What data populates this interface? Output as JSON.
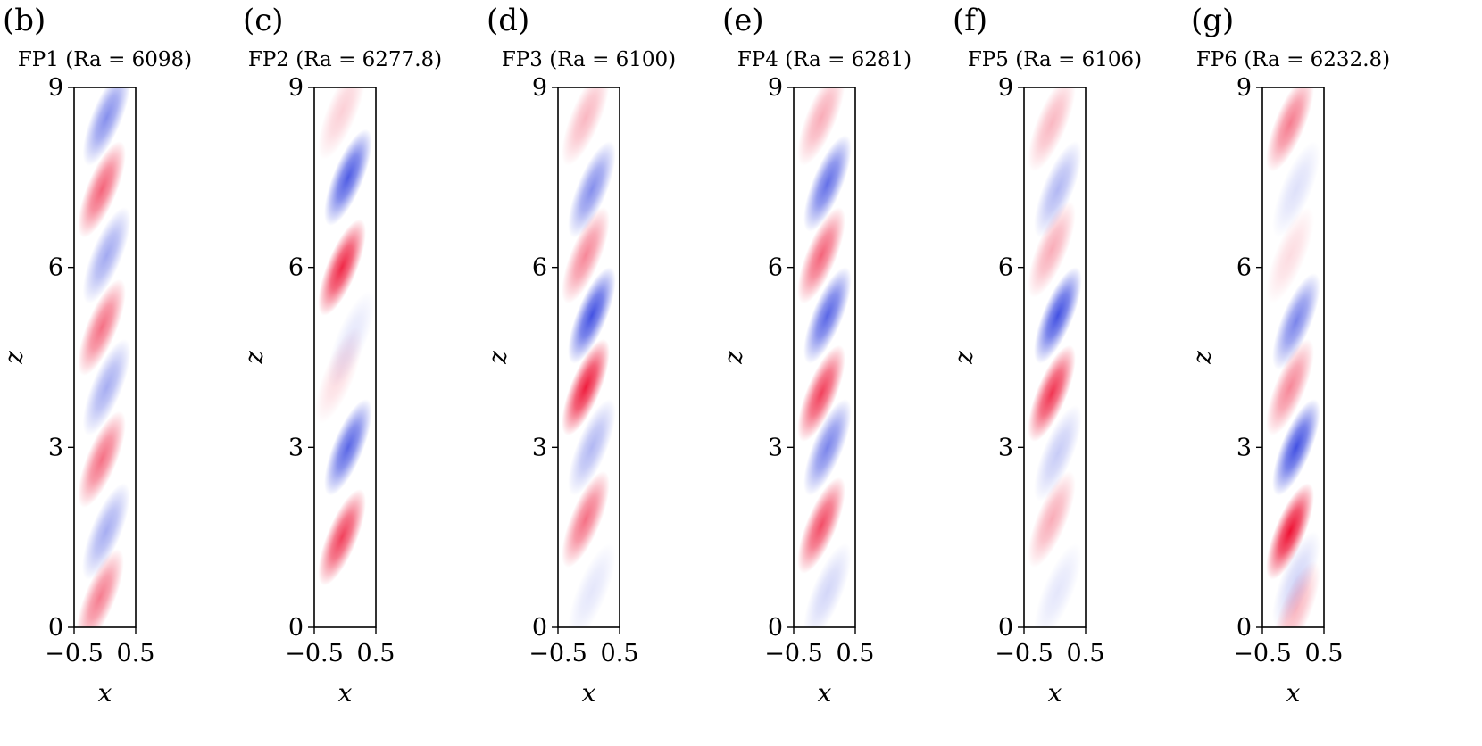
{
  "chart_data": [
    {
      "type": "heatmap",
      "label": "(b)",
      "title": "FP1 (Ra = 6098)",
      "xlabel": "x",
      "ylabel": "z",
      "xlim": [
        -0.5,
        0.5
      ],
      "ylim": [
        0,
        9
      ],
      "xticks": [
        "−0.5",
        "0.5"
      ],
      "yticks": [
        "0",
        "3",
        "6",
        "9"
      ],
      "colormap": [
        "#2233dd",
        "#ffffff",
        "#ee1133"
      ],
      "blobs": [
        {
          "z": 0.5,
          "x": -0.08,
          "sign": 1,
          "amp": 0.55
        },
        {
          "z": 1.6,
          "x": 0.02,
          "sign": -1,
          "amp": 0.4
        },
        {
          "z": 2.8,
          "x": -0.05,
          "sign": 1,
          "amp": 0.6
        },
        {
          "z": 4.0,
          "x": 0.03,
          "sign": -1,
          "amp": 0.4
        },
        {
          "z": 5.0,
          "x": -0.05,
          "sign": 1,
          "amp": 0.6
        },
        {
          "z": 6.2,
          "x": 0.03,
          "sign": -1,
          "amp": 0.42
        },
        {
          "z": 7.3,
          "x": -0.05,
          "sign": 1,
          "amp": 0.65
        },
        {
          "z": 8.5,
          "x": 0.03,
          "sign": -1,
          "amp": 0.55
        }
      ]
    },
    {
      "type": "heatmap",
      "label": "(c)",
      "title": "FP2 (Ra = 6277.8)",
      "xlabel": "x",
      "ylabel": "z",
      "xlim": [
        -0.5,
        0.5
      ],
      "ylim": [
        0,
        9
      ],
      "xticks": [
        "−0.5",
        "0.5"
      ],
      "yticks": [
        "0",
        "3",
        "6",
        "9"
      ],
      "colormap": [
        "#2233dd",
        "#ffffff",
        "#ee1133"
      ],
      "blobs": [
        {
          "z": 1.5,
          "x": -0.05,
          "sign": 1,
          "amp": 0.8
        },
        {
          "z": 3.0,
          "x": 0.05,
          "sign": -1,
          "amp": 0.75
        },
        {
          "z": 4.2,
          "x": -0.1,
          "sign": 1,
          "amp": 0.15
        },
        {
          "z": 4.8,
          "x": 0.1,
          "sign": -1,
          "amp": 0.12
        },
        {
          "z": 6.0,
          "x": -0.05,
          "sign": 1,
          "amp": 0.9
        },
        {
          "z": 7.5,
          "x": 0.05,
          "sign": -1,
          "amp": 0.8
        },
        {
          "z": 8.6,
          "x": -0.05,
          "sign": 1,
          "amp": 0.2
        }
      ]
    },
    {
      "type": "heatmap",
      "label": "(d)",
      "title": "FP3 (Ra = 6100)",
      "xlabel": "x",
      "ylabel": "z",
      "xlim": [
        -0.5,
        0.5
      ],
      "ylim": [
        0,
        9
      ],
      "xticks": [
        "−0.5",
        "0.5"
      ],
      "yticks": [
        "0",
        "3",
        "6",
        "9"
      ],
      "colormap": [
        "#2233dd",
        "#ffffff",
        "#ee1133"
      ],
      "blobs": [
        {
          "z": 0.6,
          "x": 0.05,
          "sign": -1,
          "amp": 0.12
        },
        {
          "z": 1.8,
          "x": -0.05,
          "sign": 1,
          "amp": 0.6
        },
        {
          "z": 3.0,
          "x": 0.05,
          "sign": -1,
          "amp": 0.35
        },
        {
          "z": 4.0,
          "x": -0.05,
          "sign": 1,
          "amp": 0.95
        },
        {
          "z": 5.2,
          "x": 0.05,
          "sign": -1,
          "amp": 0.85
        },
        {
          "z": 6.2,
          "x": -0.05,
          "sign": 1,
          "amp": 0.5
        },
        {
          "z": 7.3,
          "x": 0.05,
          "sign": -1,
          "amp": 0.55
        },
        {
          "z": 8.5,
          "x": -0.05,
          "sign": 1,
          "amp": 0.3
        }
      ]
    },
    {
      "type": "heatmap",
      "label": "(e)",
      "title": "FP4 (Ra = 6281)",
      "xlabel": "x",
      "ylabel": "z",
      "xlim": [
        -0.5,
        0.5
      ],
      "ylim": [
        0,
        9
      ],
      "xticks": [
        "−0.5",
        "0.5"
      ],
      "yticks": [
        "0",
        "3",
        "6",
        "9"
      ],
      "colormap": [
        "#2233dd",
        "#ffffff",
        "#ee1133"
      ],
      "blobs": [
        {
          "z": 0.6,
          "x": 0.05,
          "sign": -1,
          "amp": 0.2
        },
        {
          "z": 1.7,
          "x": -0.05,
          "sign": 1,
          "amp": 0.75
        },
        {
          "z": 3.0,
          "x": 0.05,
          "sign": -1,
          "amp": 0.6
        },
        {
          "z": 3.9,
          "x": -0.05,
          "sign": 1,
          "amp": 0.8
        },
        {
          "z": 5.2,
          "x": 0.05,
          "sign": -1,
          "amp": 0.75
        },
        {
          "z": 6.2,
          "x": -0.05,
          "sign": 1,
          "amp": 0.65
        },
        {
          "z": 7.4,
          "x": 0.05,
          "sign": -1,
          "amp": 0.7
        },
        {
          "z": 8.5,
          "x": -0.05,
          "sign": 1,
          "amp": 0.35
        }
      ]
    },
    {
      "type": "heatmap",
      "label": "(f)",
      "title": "FP5 (Ra = 6106)",
      "xlabel": "x",
      "ylabel": "z",
      "xlim": [
        -0.5,
        0.5
      ],
      "ylim": [
        0,
        9
      ],
      "xticks": [
        "−0.5",
        "0.5"
      ],
      "yticks": [
        "0",
        "3",
        "6",
        "9"
      ],
      "colormap": [
        "#2233dd",
        "#ffffff",
        "#ee1133"
      ],
      "blobs": [
        {
          "z": 0.6,
          "x": 0.05,
          "sign": -1,
          "amp": 0.12
        },
        {
          "z": 1.8,
          "x": -0.05,
          "sign": 1,
          "amp": 0.35
        },
        {
          "z": 2.9,
          "x": 0.05,
          "sign": -1,
          "amp": 0.25
        },
        {
          "z": 3.9,
          "x": -0.05,
          "sign": 1,
          "amp": 0.85
        },
        {
          "z": 5.2,
          "x": 0.05,
          "sign": -1,
          "amp": 0.85
        },
        {
          "z": 6.3,
          "x": -0.05,
          "sign": 1,
          "amp": 0.35
        },
        {
          "z": 7.3,
          "x": 0.05,
          "sign": -1,
          "amp": 0.35
        },
        {
          "z": 8.4,
          "x": -0.05,
          "sign": 1,
          "amp": 0.3
        }
      ]
    },
    {
      "type": "heatmap",
      "label": "(g)",
      "title": "FP6 (Ra = 6232.8)",
      "xlabel": "x",
      "ylabel": "z",
      "xlim": [
        -0.5,
        0.5
      ],
      "ylim": [
        0,
        9
      ],
      "xticks": [
        "−0.5",
        "0.5"
      ],
      "yticks": [
        "0",
        "3",
        "6",
        "9"
      ],
      "colormap": [
        "#2233dd",
        "#ffffff",
        "#ee1133"
      ],
      "blobs": [
        {
          "z": 0.3,
          "x": 0.05,
          "sign": 1,
          "amp": 0.3
        },
        {
          "z": 0.8,
          "x": 0.05,
          "sign": -1,
          "amp": 0.2
        },
        {
          "z": 1.6,
          "x": -0.05,
          "sign": 1,
          "amp": 1.0
        },
        {
          "z": 3.0,
          "x": 0.05,
          "sign": -1,
          "amp": 0.85
        },
        {
          "z": 4.0,
          "x": -0.05,
          "sign": 1,
          "amp": 0.5
        },
        {
          "z": 5.1,
          "x": 0.05,
          "sign": -1,
          "amp": 0.6
        },
        {
          "z": 6.2,
          "x": -0.05,
          "sign": 1,
          "amp": 0.15
        },
        {
          "z": 7.3,
          "x": 0.05,
          "sign": -1,
          "amp": 0.15
        },
        {
          "z": 8.4,
          "x": -0.05,
          "sign": 1,
          "amp": 0.55
        }
      ]
    }
  ]
}
